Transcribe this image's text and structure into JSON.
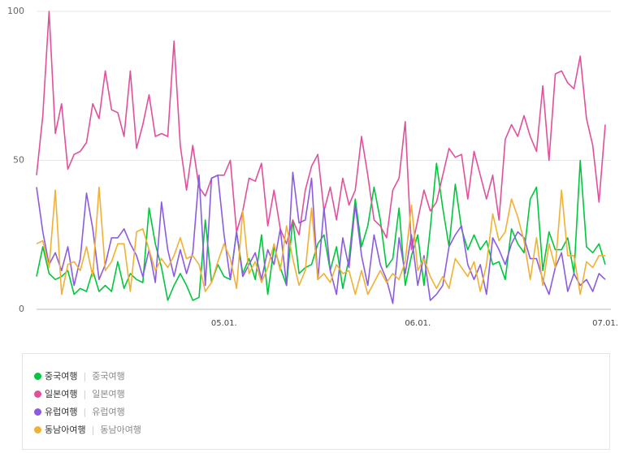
{
  "chart_data": {
    "type": "line",
    "categories": [
      null,
      null,
      null,
      null,
      null,
      null,
      null,
      null,
      null,
      null,
      null,
      null,
      null,
      null,
      null,
      null,
      null,
      null,
      null,
      null,
      null,
      null,
      null,
      null,
      null,
      null,
      null,
      null,
      null,
      null,
      "05.01.",
      null,
      null,
      null,
      null,
      null,
      null,
      null,
      null,
      null,
      null,
      null,
      null,
      null,
      null,
      null,
      null,
      null,
      null,
      null,
      null,
      null,
      null,
      null,
      null,
      null,
      null,
      null,
      null,
      null,
      null,
      "06.01.",
      null,
      null,
      null,
      null,
      null,
      null,
      null,
      null,
      null,
      null,
      null,
      null,
      null,
      null,
      null,
      null,
      null,
      null,
      null,
      null,
      null,
      null,
      null,
      null,
      null,
      null,
      null,
      null,
      null,
      "07.01."
    ],
    "ylim": [
      0,
      100
    ],
    "yticks": [
      0,
      50,
      100
    ],
    "grid": true,
    "series": [
      {
        "name": "중국여행",
        "keywords": "중국여행",
        "color": "#00c73c",
        "values": [
          11,
          21,
          12,
          10,
          11,
          13,
          5,
          7,
          6,
          13,
          6,
          8,
          6,
          16,
          7,
          12,
          10,
          9,
          34,
          22,
          14,
          3,
          8,
          12,
          8,
          3,
          4,
          30,
          9,
          15,
          11,
          10,
          26,
          12,
          17,
          10,
          25,
          5,
          21,
          14,
          8,
          30,
          12,
          14,
          15,
          22,
          25,
          13,
          21,
          7,
          17,
          37,
          21,
          28,
          41,
          30,
          14,
          17,
          34,
          8,
          18,
          25,
          8,
          27,
          49,
          34,
          21,
          42,
          27,
          20,
          25,
          20,
          23,
          15,
          16,
          10,
          27,
          22,
          19,
          37,
          41,
          13,
          26,
          20,
          20,
          24,
          12,
          50,
          21,
          19,
          22,
          15
        ]
      },
      {
        "name": "일본여행",
        "keywords": "일본여행",
        "color": "#e2509b",
        "values": [
          45,
          65,
          100,
          59,
          69,
          47,
          52,
          53,
          56,
          69,
          64,
          80,
          67,
          66,
          58,
          80,
          54,
          62,
          72,
          58,
          59,
          58,
          90,
          55,
          40,
          55,
          41,
          38,
          44,
          45,
          45,
          50,
          26,
          33,
          44,
          43,
          49,
          28,
          40,
          27,
          22,
          30,
          25,
          40,
          48,
          52,
          33,
          41,
          30,
          44,
          35,
          40,
          58,
          45,
          30,
          28,
          24,
          40,
          44,
          63,
          20,
          30,
          40,
          33,
          36,
          45,
          54,
          51,
          52,
          37,
          53,
          45,
          37,
          45,
          30,
          57,
          62,
          58,
          65,
          58,
          53,
          75,
          50,
          79,
          80,
          76,
          74,
          85,
          64,
          55,
          36,
          62
        ]
      },
      {
        "name": "유럽여행",
        "keywords": "유럽여행",
        "color": "#8c5be3",
        "values": [
          41,
          26,
          15,
          19,
          13,
          21,
          8,
          17,
          39,
          27,
          10,
          15,
          24,
          24,
          27,
          22,
          18,
          11,
          20,
          9,
          36,
          20,
          11,
          20,
          12,
          19,
          45,
          8,
          44,
          45,
          25,
          10,
          26,
          11,
          15,
          19,
          10,
          20,
          15,
          27,
          8,
          46,
          29,
          30,
          44,
          10,
          34,
          13,
          5,
          24,
          14,
          35,
          18,
          8,
          25,
          15,
          10,
          2,
          24,
          12,
          25,
          8,
          18,
          3,
          5,
          8,
          21,
          25,
          28,
          15,
          10,
          15,
          5,
          24,
          20,
          15,
          22,
          26,
          24,
          17,
          17,
          10,
          5,
          14,
          19,
          6,
          12,
          8,
          10,
          6,
          12,
          10
        ]
      },
      {
        "name": "동남아여행",
        "keywords": "동남아여행",
        "color": "#f1b132",
        "values": [
          22,
          23,
          14,
          40,
          5,
          15,
          16,
          13,
          21,
          11,
          41,
          13,
          16,
          22,
          22,
          6,
          26,
          27,
          20,
          13,
          17,
          14,
          18,
          24,
          17,
          18,
          15,
          6,
          9,
          16,
          22,
          17,
          7,
          33,
          12,
          16,
          9,
          14,
          22,
          13,
          28,
          17,
          8,
          13,
          34,
          10,
          12,
          9,
          15,
          12,
          13,
          5,
          13,
          5,
          9,
          13,
          9,
          12,
          10,
          16,
          35,
          13,
          17,
          11,
          7,
          11,
          7,
          17,
          14,
          11,
          16,
          6,
          15,
          32,
          23,
          26,
          37,
          31,
          23,
          10,
          24,
          8,
          22,
          14,
          40,
          18,
          18,
          5,
          16,
          14,
          18,
          18
        ]
      }
    ]
  }
}
